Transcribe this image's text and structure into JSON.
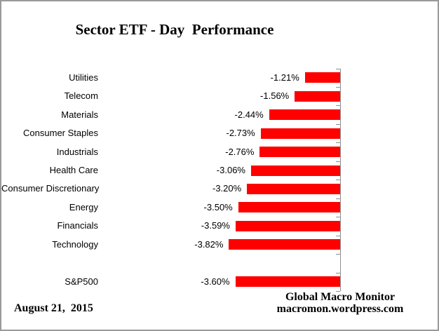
{
  "title": "Sector ETF - Day  Performance",
  "chart_data": {
    "type": "bar",
    "orientation": "horizontal",
    "title": "Sector ETF - Day  Performance",
    "xlabel": "",
    "ylabel": "",
    "xlim": [
      -4.0,
      0
    ],
    "grid": false,
    "legend": false,
    "value_format": "percent",
    "bar_color": "#ff0000",
    "axis_color": "#8e8e8e",
    "categories": [
      "Utilities",
      "Telecom",
      "Materials",
      "Consumer Staples",
      "Industrials",
      "Health Care",
      "Consumer Discretionary",
      "Energy",
      "Financials",
      "Technology",
      "S&P500"
    ],
    "values": [
      -1.21,
      -1.56,
      -2.44,
      -2.73,
      -2.76,
      -3.06,
      -3.2,
      -3.5,
      -3.59,
      -3.82,
      -3.6
    ],
    "rows": [
      {
        "label": "Utilities",
        "value": -1.21,
        "display": "-1.21%"
      },
      {
        "label": "Telecom",
        "value": -1.56,
        "display": "-1.56%"
      },
      {
        "label": "Materials",
        "value": -2.44,
        "display": "-2.44%"
      },
      {
        "label": "Consumer Staples",
        "value": -2.73,
        "display": "-2.73%"
      },
      {
        "label": "Industrials",
        "value": -2.76,
        "display": "-2.76%"
      },
      {
        "label": "Health Care",
        "value": -3.06,
        "display": "-3.06%"
      },
      {
        "label": "Consumer Discretionary",
        "value": -3.2,
        "display": "-3.20%"
      },
      {
        "label": "Energy",
        "value": -3.5,
        "display": "-3.50%"
      },
      {
        "label": "Financials",
        "value": -3.59,
        "display": "-3.59%"
      },
      {
        "label": "Technology",
        "value": -3.82,
        "display": "-3.82%"
      },
      {
        "label": "",
        "value": null,
        "display": ""
      },
      {
        "label": "S&P500",
        "value": -3.6,
        "display": "-3.60%"
      }
    ]
  },
  "footer": {
    "date": "August 21,  2015",
    "credit_line1": "Global Macro Monitor",
    "credit_line2": "macromon.wordpress.com"
  }
}
